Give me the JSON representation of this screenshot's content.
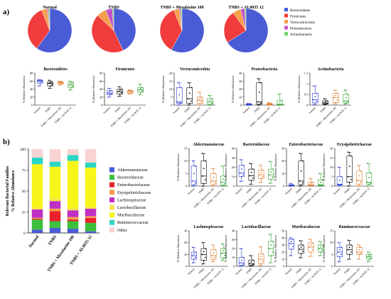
{
  "panels": {
    "a": "a)",
    "b": "b)"
  },
  "groups": [
    "Normal",
    "TNBS",
    "TNBS + Mesalazine 100",
    "TNBS + AL0035 12"
  ],
  "colors": {
    "Bacteroidetes": "#4a5bd6",
    "Firmicutes": "#f03c3c",
    "Verrucomicrobia": "#f4a04a",
    "Proteobacteria": "#c455c9",
    "Actinobacteria": "#6fd86c",
    "Akkermansiaceae": "#4a5bd6",
    "Bacteroidaceae": "#3cbf3c",
    "Enterobacteriaceae": "#e8202a",
    "Erysipelotrichaceae": "#f4a04a",
    "Lachnospiraceae": "#c02fc4",
    "Lactobacillaceae": "#f4e14a",
    "Muribaculaceae": "#f7f51a",
    "Ruminococcaceae": "#2ad6c4",
    "Other": "#f9d2d2",
    "group_box": [
      "#2a3ccf",
      "#000000",
      "#e07a2a",
      "#2ea32e"
    ]
  },
  "chart_data": [
    {
      "type": "pie",
      "legend": [
        "Bacteroidetes",
        "Firmicutes",
        "Verrucomicrobia",
        "Proteobacteria",
        "Actinobacteria"
      ],
      "pies": [
        {
          "title": "Normal",
          "values": [
            60,
            34,
            4,
            1,
            1
          ]
        },
        {
          "title": "TNBS",
          "values": [
            43,
            44,
            7,
            5,
            1
          ]
        },
        {
          "title": "TNBS + Mesalazine 100",
          "values": [
            58,
            36,
            4,
            1,
            1
          ]
        },
        {
          "title": "TNBS + AL0035 12",
          "values": [
            66,
            24,
            6,
            3,
            1
          ]
        }
      ]
    },
    {
      "type": "box",
      "ylabel": "% Relative Abundance",
      "categories": [
        "Normal",
        "TNBS",
        "TNBS + Mesalazine 100",
        "TNBS + AL0035 12"
      ],
      "panels": [
        {
          "title": "Bacteroidetes",
          "ylim": [
            0,
            80
          ],
          "ticks": [
            0,
            20,
            40,
            60,
            80
          ],
          "boxes": [
            [
              48,
              55,
              60,
              62,
              64
            ],
            [
              42,
              48,
              54,
              58,
              62
            ],
            [
              50,
              53,
              56,
              58,
              60
            ],
            [
              38,
              44,
              50,
              56,
              60
            ]
          ]
        },
        {
          "title": "Firmicutes",
          "ylim": [
            0,
            80
          ],
          "ticks": [
            0,
            20,
            40,
            60,
            80
          ],
          "boxes": [
            [
              20,
              26,
              30,
              36,
              42
            ],
            [
              22,
              28,
              34,
              40,
              46
            ],
            [
              28,
              30,
              34,
              36,
              38
            ],
            [
              26,
              32,
              38,
              44,
              52
            ]
          ]
        },
        {
          "title": "Verrucomicrobia",
          "ylim": [
            0,
            20
          ],
          "ticks": [
            0,
            5,
            10,
            15,
            20
          ],
          "boxes": [
            [
              0,
              1,
              2,
              11,
              14
            ],
            [
              0,
              1,
              4,
              11,
              14
            ],
            [
              0,
              1,
              3,
              5,
              8
            ],
            [
              0,
              0.5,
              2,
              4,
              6
            ]
          ]
        },
        {
          "title": "Proteobacteria",
          "ylim": [
            0,
            40
          ],
          "ticks": [
            0,
            10,
            20,
            30,
            40
          ],
          "boxes": [
            [
              0,
              0.3,
              0.8,
              1.5,
              2
            ],
            [
              0,
              1,
              4,
              28,
              33
            ],
            [
              0,
              0.5,
              1,
              2,
              3
            ],
            [
              0,
              0.5,
              1,
              6,
              14
            ]
          ]
        },
        {
          "title": "Actinobacteria",
          "ylim": [
            0,
            1.5
          ],
          "ticks": [
            0,
            0.5,
            1.0,
            1.5
          ],
          "boxes": [
            [
              0.02,
              0.1,
              0.25,
              0.55,
              0.9
            ],
            [
              0.02,
              0.05,
              0.1,
              0.2,
              0.3
            ],
            [
              0.05,
              0.12,
              0.35,
              0.55,
              0.7
            ],
            [
              0.05,
              0.1,
              0.2,
              0.5,
              0.7
            ]
          ]
        }
      ]
    },
    {
      "type": "stacked-bar",
      "ylabel": "Relevant Bacterial Families\n% Relative Abundance",
      "ylim": [
        0,
        100
      ],
      "ticks": [
        0,
        25,
        50,
        75,
        100
      ],
      "categories": [
        "Normal",
        "TNBS",
        "TNBS + Mesalazine 100",
        "TNBS + AL0035 12"
      ],
      "legend": [
        "Akkermansiaceae",
        "Bacteroidaceae",
        "Enterobacteriaceae",
        "Erysipelotrichaceae",
        "Lachnospiraceae",
        "Lactobacillaceae",
        "Muribaculaceae",
        "Ruminococcaceae",
        "Other"
      ],
      "series": [
        {
          "name": "Akkermansiaceae",
          "values": [
            4,
            6,
            5,
            2
          ]
        },
        {
          "name": "Bacteroidaceae",
          "values": [
            12,
            8,
            9,
            10
          ]
        },
        {
          "name": "Enterobacteriaceae",
          "values": [
            1,
            12,
            2,
            6
          ]
        },
        {
          "name": "Erysipelotrichaceae",
          "values": [
            1,
            3,
            3,
            2
          ]
        },
        {
          "name": "Lachnospiraceae",
          "values": [
            10,
            9,
            8,
            9
          ]
        },
        {
          "name": "Lactobacillaceae",
          "values": [
            2,
            3,
            3,
            2
          ]
        },
        {
          "name": "Muribaculaceae",
          "values": [
            52,
            38,
            56,
            47
          ]
        },
        {
          "name": "Ruminococcaceae",
          "values": [
            8,
            6,
            7,
            6
          ]
        },
        {
          "name": "Other",
          "values": [
            10,
            15,
            7,
            16
          ]
        }
      ]
    },
    {
      "type": "box",
      "ylabel": "% Relative Abundance",
      "categories": [
        "Normal",
        "TNBS",
        "TNBS + Mesalazine 100",
        "TNBS + AL0035 12"
      ],
      "panels": [
        {
          "title": "Akkermansiaceae",
          "ylim": [
            0,
            15
          ],
          "ticks": [
            0,
            5,
            10,
            15
          ],
          "boxes": [
            [
              0,
              0.5,
              2,
              8,
              10
            ],
            [
              0,
              1,
              4,
              10,
              13
            ],
            [
              0,
              0.5,
              2,
              5,
              7
            ],
            [
              0,
              0.3,
              1.5,
              4,
              8
            ]
          ]
        },
        {
          "title": "Bacteroidaceae",
          "ylim": [
            0,
            40
          ],
          "ticks": [
            0,
            10,
            20,
            30,
            40
          ],
          "boxes": [
            [
              5,
              10,
              14,
              22,
              28
            ],
            [
              2,
              6,
              11,
              18,
              24
            ],
            [
              4,
              8,
              12,
              17,
              22
            ],
            [
              3,
              7,
              12,
              18,
              26
            ]
          ]
        },
        {
          "title": "Enterobacteriaceae",
          "ylim": [
            0,
            30
          ],
          "ticks": [
            0,
            10,
            20,
            30
          ],
          "boxes": [
            [
              0,
              0.2,
              0.5,
              1,
              2
            ],
            [
              0,
              1,
              4,
              20,
              26
            ],
            [
              0,
              0.5,
              1,
              3,
              6
            ],
            [
              0,
              0.5,
              1,
              5,
              10
            ]
          ]
        },
        {
          "title": "Erysipelotrichaceae",
          "ylim": [
            0,
            20
          ],
          "ticks": [
            0,
            5,
            10,
            15,
            20
          ],
          "boxes": [
            [
              0,
              0.5,
              1,
              5,
              10
            ],
            [
              0,
              2,
              5,
              16,
              18
            ],
            [
              0,
              1,
              3,
              8,
              11
            ],
            [
              0,
              1,
              2,
              7,
              12
            ]
          ]
        }
      ]
    },
    {
      "type": "box",
      "ylabel": "% Relative Abundance",
      "categories": [
        "Normal",
        "TNBS",
        "TNBS + Mesalazine 100",
        "TNBS + AL0035 12"
      ],
      "panels": [
        {
          "title": "Lachnospiraceae",
          "ylim": [
            0,
            30
          ],
          "ticks": [
            0,
            10,
            20,
            30
          ],
          "boxes": [
            [
              3,
              6,
              9,
              12,
              16
            ],
            [
              2,
              5,
              10,
              15,
              20
            ],
            [
              4,
              6,
              9,
              14,
              18
            ],
            [
              5,
              7,
              11,
              15,
              19
            ]
          ]
        },
        {
          "title": "Lactobacillaceae",
          "ylim": [
            0,
            40
          ],
          "ticks": [
            0,
            10,
            20,
            30,
            40
          ],
          "boxes": [
            [
              0,
              1,
              4,
              10,
              20
            ],
            [
              0,
              1,
              3,
              7,
              12
            ],
            [
              1,
              3,
              8,
              14,
              22
            ],
            [
              4,
              12,
              20,
              28,
              36
            ]
          ]
        },
        {
          "title": "Muribaculaceae",
          "ylim": [
            0,
            50
          ],
          "ticks": [
            0,
            10,
            20,
            30,
            40,
            50
          ],
          "boxes": [
            [
              15,
              24,
              32,
              38,
              40
            ],
            [
              12,
              18,
              24,
              30,
              36
            ],
            [
              14,
              20,
              27,
              33,
              38
            ],
            [
              15,
              20,
              25,
              30,
              35
            ]
          ]
        },
        {
          "title": "Ruminococcaceae",
          "ylim": [
            0,
            15
          ],
          "ticks": [
            0,
            5,
            10,
            15
          ],
          "boxes": [
            [
              2,
              4,
              6,
              8,
              10
            ],
            [
              3,
              5,
              7,
              9,
              11
            ],
            [
              3,
              5,
              6,
              8,
              9
            ],
            [
              2,
              3,
              4,
              5,
              6
            ]
          ]
        }
      ]
    }
  ]
}
